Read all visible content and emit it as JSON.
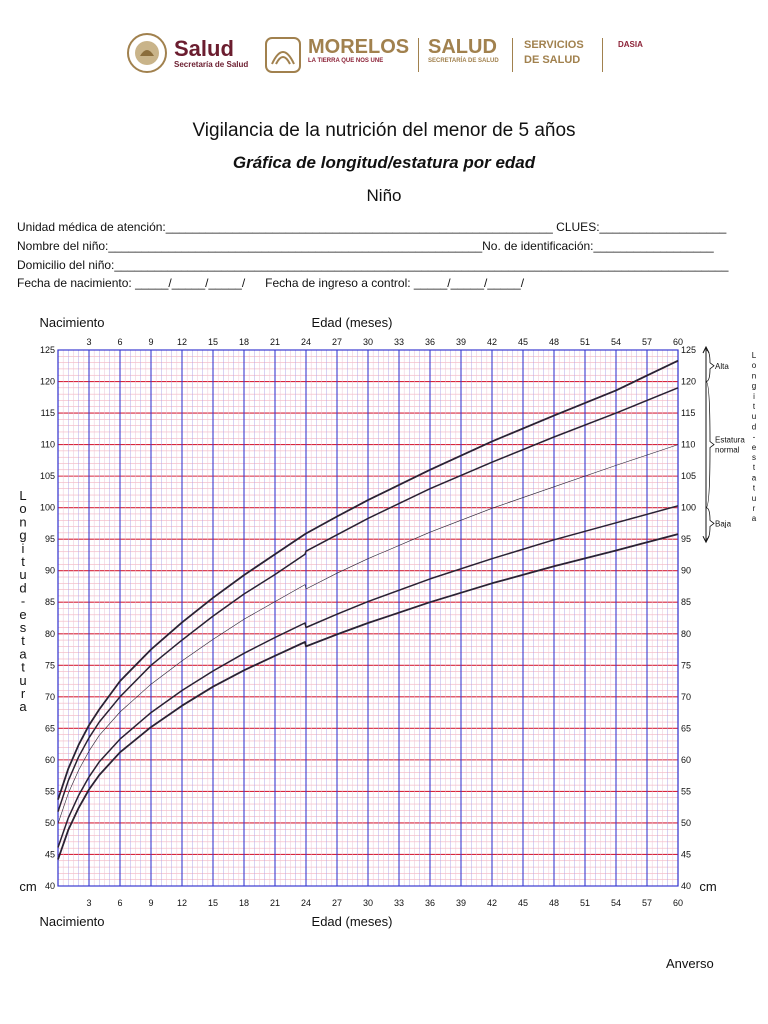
{
  "header": {
    "logo1_title": "Salud",
    "logo1_subtitle": "Secretaría de Salud",
    "logo2_title": "MORELOS",
    "logo2_subtitle": "LA TIERRA QUE NOS UNE",
    "logo3_title": "SALUD",
    "logo3_subtitle": "SECRETARÍA DE SALUD",
    "logo4_line1": "SERVICIOS",
    "logo4_line2": "DE SALUD",
    "logo5": "DASIA"
  },
  "document": {
    "title": "Vigilancia de la nutrición del menor de 5 años",
    "subtitle": "Gráfica de longitud/estatura por edad",
    "sex": "Niño",
    "fields": {
      "unidad": "Unidad médica de atención:__________________________________________________________ CLUES:___________________",
      "nombre": "Nombre del niño:________________________________________________________No. de identificación:__________________",
      "domicilio": "Domicilio del niño:____________________________________________________________________________________________",
      "fechas": "Fecha de nacimiento: _____/_____/_____/      Fecha de ingreso a control: _____/_____/_____/"
    },
    "footer": "Anverso"
  },
  "chart_data": {
    "type": "line",
    "xlabel": "Edad (meses)",
    "ylabel": "Longitud - estatura",
    "x_start_label": "Nacimiento",
    "unit": "cm",
    "xlim": [
      0,
      60
    ],
    "ylim": [
      40,
      125
    ],
    "x_ticks": [
      3,
      6,
      9,
      12,
      15,
      18,
      21,
      24,
      27,
      30,
      33,
      36,
      39,
      42,
      45,
      48,
      51,
      54,
      57,
      60
    ],
    "y_ticks": [
      40,
      45,
      50,
      55,
      60,
      65,
      70,
      75,
      80,
      85,
      90,
      95,
      100,
      105,
      110,
      115,
      120,
      125
    ],
    "grid": true,
    "zones": [
      {
        "label": "Alta",
        "from": 120,
        "to": 125
      },
      {
        "label": "Estatura normal",
        "from": 100,
        "to": 120
      },
      {
        "label": "Baja",
        "from": 95,
        "to": 100
      }
    ],
    "series": [
      {
        "x": [
          0,
          1,
          2,
          3,
          4,
          6,
          9,
          12,
          15,
          18,
          21,
          23.9,
          24,
          27,
          30,
          36,
          42,
          48,
          54,
          60
        ],
        "values": [
          53.7,
          58.6,
          62.4,
          65.5,
          68.0,
          72.5,
          77.5,
          81.8,
          85.7,
          89.3,
          92.6,
          95.8,
          95.9,
          98.6,
          101.2,
          106.0,
          110.5,
          114.6,
          118.6,
          123.3
        ]
      },
      {
        "x": [
          0,
          1,
          2,
          3,
          4,
          6,
          9,
          12,
          15,
          18,
          21,
          23.9,
          24,
          27,
          30,
          36,
          42,
          48,
          54,
          60
        ],
        "values": [
          51.8,
          56.7,
          60.5,
          63.5,
          66.0,
          70.0,
          75.0,
          79.0,
          82.8,
          86.3,
          89.4,
          92.6,
          93.1,
          95.7,
          98.3,
          103.0,
          107.2,
          111.2,
          115.0,
          119.0
        ]
      },
      {
        "x": [
          0,
          1,
          2,
          3,
          4,
          6,
          9,
          12,
          15,
          18,
          21,
          23.9,
          24,
          27,
          30,
          36,
          42,
          48,
          54,
          60
        ],
        "values": [
          49.9,
          54.7,
          58.4,
          61.4,
          63.9,
          67.6,
          72.0,
          75.7,
          79.1,
          82.3,
          85.1,
          87.8,
          87.1,
          89.6,
          91.9,
          96.1,
          99.9,
          103.3,
          106.7,
          110.0
        ]
      },
      {
        "x": [
          0,
          1,
          2,
          3,
          4,
          6,
          9,
          12,
          15,
          18,
          21,
          23.9,
          24,
          27,
          30,
          36,
          42,
          48,
          54,
          60
        ],
        "values": [
          46.1,
          50.8,
          54.4,
          57.3,
          59.7,
          63.3,
          67.5,
          71.0,
          74.1,
          76.9,
          79.4,
          81.7,
          81.0,
          83.1,
          85.1,
          88.7,
          91.9,
          94.9,
          97.6,
          100.3
        ]
      },
      {
        "x": [
          0,
          1,
          2,
          3,
          4,
          6,
          9,
          12,
          15,
          18,
          21,
          23.9,
          24,
          27,
          30,
          36,
          42,
          48,
          54,
          60
        ],
        "values": [
          44.2,
          48.9,
          52.4,
          55.3,
          57.6,
          61.2,
          65.2,
          68.6,
          71.6,
          74.2,
          76.5,
          78.7,
          78.0,
          79.9,
          81.7,
          85.0,
          88.0,
          90.7,
          93.2,
          95.8
        ]
      }
    ]
  }
}
